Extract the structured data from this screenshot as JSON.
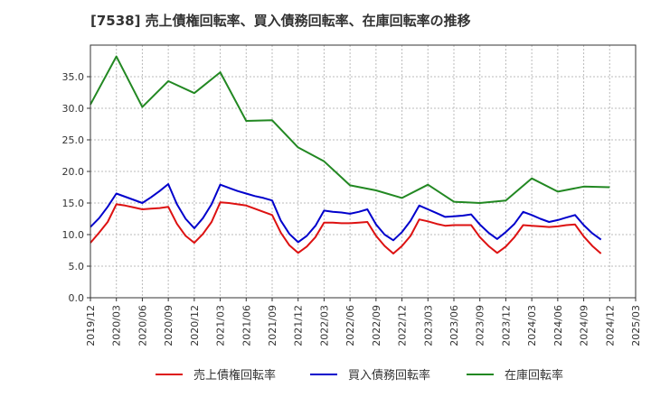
{
  "chart_data": {
    "type": "line",
    "title": "[7538]  売上債権回転率、買入債務回転率、在庫回転率の推移",
    "xlabel": "",
    "ylabel": "",
    "ylim": [
      0,
      40
    ],
    "yticks": [
      0.0,
      5.0,
      10.0,
      15.0,
      20.0,
      25.0,
      30.0,
      35.0
    ],
    "yticklabels": [
      "0.0",
      "5.0",
      "10.0",
      "15.0",
      "20.0",
      "25.0",
      "30.0",
      "35.0"
    ],
    "xticklabels": [
      "2019/12",
      "2020/03",
      "2020/06",
      "2020/09",
      "2020/12",
      "2021/03",
      "2021/06",
      "2021/09",
      "2021/12",
      "2022/03",
      "2022/06",
      "2022/09",
      "2022/12",
      "2023/03",
      "2023/06",
      "2023/09",
      "2023/12",
      "2024/03",
      "2024/06",
      "2024/09",
      "2024/12",
      "2025/03"
    ],
    "grid": true,
    "legend_position": "bottom",
    "series": [
      {
        "name": "売上債権回転率",
        "color": "#dd1111",
        "x": [
          0,
          1,
          2,
          3,
          4,
          5,
          6,
          7,
          8,
          9,
          10,
          11,
          12,
          13,
          14,
          15,
          16,
          17,
          18,
          19,
          20,
          21,
          22,
          23,
          24,
          25,
          26,
          27,
          28,
          29,
          30,
          31,
          32,
          33,
          34,
          35,
          36,
          37,
          38,
          39,
          40,
          41,
          42,
          43,
          44,
          45,
          46,
          47,
          48,
          49,
          50,
          51,
          52,
          53,
          54,
          55,
          56,
          57,
          58,
          59,
          60
        ],
        "values": [
          8.7,
          10.3,
          12.0,
          14.8,
          14.6,
          14.3,
          14.0,
          14.1,
          14.2,
          14.4,
          11.7,
          9.8,
          8.7,
          10.1,
          12.0,
          15.1,
          15.0,
          14.8,
          14.6,
          14.1,
          13.6,
          13.1,
          10.3,
          8.3,
          7.1,
          8.1,
          9.6,
          11.9,
          11.9,
          11.8,
          11.8,
          11.9,
          12.0,
          9.8,
          8.2,
          7.0,
          8.2,
          9.8,
          12.4,
          12.1,
          11.7,
          11.4,
          11.5,
          11.5,
          11.5,
          9.6,
          8.2,
          7.1,
          8.1,
          9.6,
          11.5,
          11.4,
          11.3,
          11.2,
          11.3,
          11.5,
          11.6,
          9.7,
          8.2,
          7.0,
          null
        ]
      },
      {
        "name": "買入債務回転率",
        "color": "#0000cc",
        "x": [
          0,
          1,
          2,
          3,
          4,
          5,
          6,
          7,
          8,
          9,
          10,
          11,
          12,
          13,
          14,
          15,
          16,
          17,
          18,
          19,
          20,
          21,
          22,
          23,
          24,
          25,
          26,
          27,
          28,
          29,
          30,
          31,
          32,
          33,
          34,
          35,
          36,
          37,
          38,
          39,
          40,
          41,
          42,
          43,
          44,
          45,
          46,
          47,
          48,
          49,
          50,
          51,
          52,
          53,
          54,
          55,
          56,
          57,
          58,
          59,
          60
        ],
        "values": [
          11.2,
          12.6,
          14.4,
          16.5,
          16.0,
          15.5,
          15.0,
          15.9,
          16.9,
          18.0,
          14.8,
          12.5,
          11.0,
          12.6,
          14.8,
          17.9,
          17.4,
          16.9,
          16.5,
          16.1,
          15.8,
          15.4,
          12.2,
          10.1,
          8.8,
          9.8,
          11.4,
          13.8,
          13.6,
          13.5,
          13.3,
          13.6,
          14.0,
          11.6,
          10.0,
          9.1,
          10.4,
          12.2,
          14.6,
          14.0,
          13.4,
          12.8,
          12.9,
          13.0,
          13.2,
          11.6,
          10.3,
          9.3,
          10.4,
          11.7,
          13.6,
          13.1,
          12.5,
          12.0,
          12.3,
          12.7,
          13.1,
          11.5,
          10.2,
          9.2,
          null
        ]
      },
      {
        "name": "在庫回転率",
        "color": "#228822",
        "x": [
          0,
          3,
          6,
          9,
          12,
          15,
          18,
          21,
          24,
          27,
          30,
          33,
          36,
          39,
          42,
          45,
          48,
          51,
          54,
          57,
          60
        ],
        "values": [
          30.6,
          38.2,
          30.2,
          34.3,
          32.4,
          35.7,
          28.0,
          28.1,
          23.8,
          21.6,
          17.8,
          17.0,
          15.8,
          17.9,
          15.2,
          15.0,
          15.4,
          18.9,
          16.8,
          17.6,
          17.5
        ]
      }
    ]
  }
}
